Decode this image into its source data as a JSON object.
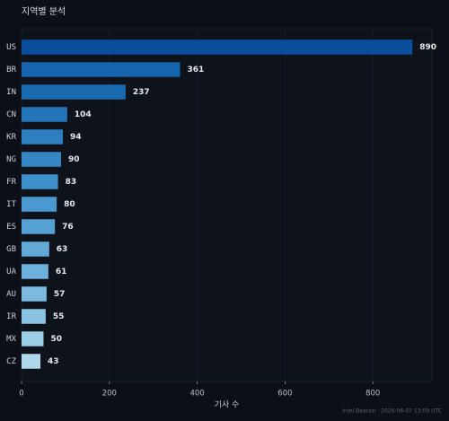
{
  "chart_data": {
    "type": "hbar",
    "title": "지역별 분석",
    "x_label": "기사 수",
    "footer": "Intel Beacon · 2026-06-07 13:09 UTC",
    "categories": [
      "US",
      "BR",
      "IN",
      "CN",
      "KR",
      "NG",
      "FR",
      "IT",
      "ES",
      "GB",
      "UA",
      "AU",
      "IR",
      "MX",
      "CZ"
    ],
    "values": [
      890,
      361,
      237,
      104,
      94,
      90,
      83,
      80,
      76,
      63,
      61,
      57,
      55,
      50,
      43
    ],
    "colors": [
      "#0b4f9c",
      "#1764ae",
      "#1a6aaf",
      "#2474b9",
      "#2d7fc0",
      "#3686c5",
      "#3f90ca",
      "#4a99cf",
      "#56a1d3",
      "#62a9d7",
      "#6db0da",
      "#7cbade",
      "#8ac2e2",
      "#9ccde7",
      "#aed7ec"
    ],
    "xlim": [
      0,
      934.5
    ],
    "xticks": [
      0,
      200,
      400,
      600,
      800
    ],
    "grid": true
  }
}
